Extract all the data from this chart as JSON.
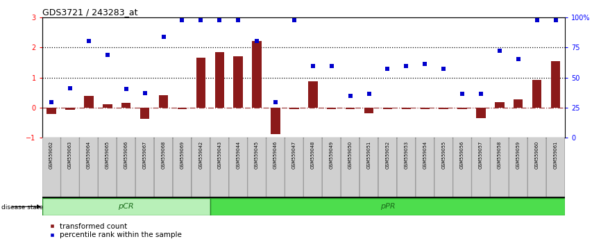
{
  "title": "GDS3721 / 243283_at",
  "samples": [
    "GSM559062",
    "GSM559063",
    "GSM559064",
    "GSM559065",
    "GSM559066",
    "GSM559067",
    "GSM559068",
    "GSM559069",
    "GSM559042",
    "GSM559043",
    "GSM559044",
    "GSM559045",
    "GSM559046",
    "GSM559047",
    "GSM559048",
    "GSM559049",
    "GSM559050",
    "GSM559051",
    "GSM559052",
    "GSM559053",
    "GSM559054",
    "GSM559055",
    "GSM559056",
    "GSM559057",
    "GSM559058",
    "GSM559059",
    "GSM559060",
    "GSM559061"
  ],
  "red_bars": [
    -0.22,
    -0.08,
    0.38,
    0.12,
    0.15,
    -0.38,
    0.42,
    -0.04,
    1.65,
    1.85,
    1.7,
    2.2,
    -0.88,
    -0.05,
    0.88,
    -0.05,
    -0.06,
    -0.18,
    -0.05,
    -0.05,
    -0.05,
    -0.05,
    -0.06,
    -0.35,
    0.18,
    0.28,
    0.92,
    1.55
  ],
  "blue_squares": [
    0.18,
    0.65,
    2.2,
    1.75,
    0.62,
    0.48,
    2.35,
    2.9,
    2.9,
    2.9,
    2.9,
    2.22,
    0.18,
    2.9,
    1.38,
    1.38,
    0.38,
    0.45,
    1.28,
    1.38,
    1.45,
    1.28,
    0.45,
    0.45,
    1.88,
    1.62,
    2.9,
    2.9
  ],
  "pCR_count": 9,
  "pPR_count": 19,
  "ylim_left": [
    -1,
    3
  ],
  "bar_color": "#8B1A1A",
  "square_color": "#0000CC",
  "pCR_light": "#b8f0b8",
  "pPR_green": "#4ddd4d",
  "bg_color": "#ffffff",
  "right_axis_ticks": [
    0,
    25,
    50,
    75,
    100
  ],
  "right_axis_labels": [
    "0",
    "25",
    "50",
    "75",
    "100%"
  ],
  "left_axis_ticks": [
    -1,
    0,
    1,
    2,
    3
  ]
}
